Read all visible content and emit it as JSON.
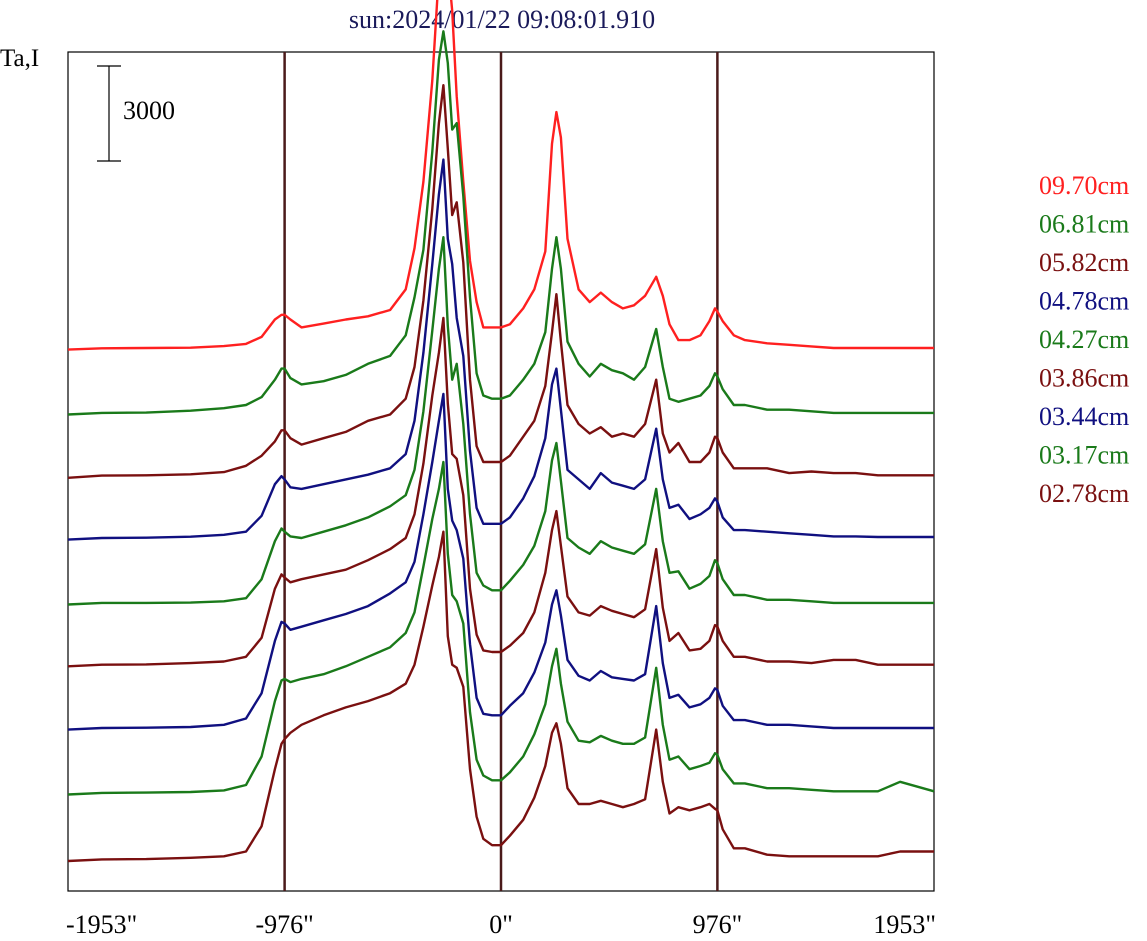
{
  "chart_data": {
    "type": "line",
    "title": "sun:2024/01/22 09:08:01.910",
    "ylabel": "Ta,I",
    "scale_bar_label": "3000",
    "scale_bar_value": 3000,
    "xlim": [
      -1953,
      1953
    ],
    "x_ticks": [
      {
        "value": -1953,
        "label": "-1953\""
      },
      {
        "value": -976,
        "label": "-976\""
      },
      {
        "value": 0,
        "label": "0\""
      },
      {
        "value": 976,
        "label": "976\""
      },
      {
        "value": 1953,
        "label": "1953\""
      }
    ],
    "vertical_lines": [
      -976,
      0,
      976
    ],
    "grid": false,
    "legend_position": "right",
    "x": [
      -1953,
      -1800,
      -1600,
      -1400,
      -1250,
      -1150,
      -1080,
      -1020,
      -990,
      -976,
      -950,
      -900,
      -800,
      -700,
      -600,
      -500,
      -430,
      -390,
      -350,
      -310,
      -280,
      -260,
      -240,
      -220,
      -200,
      -170,
      -140,
      -110,
      -80,
      -40,
      0,
      40,
      100,
      150,
      200,
      230,
      250,
      270,
      300,
      350,
      400,
      450,
      500,
      550,
      600,
      650,
      700,
      730,
      760,
      800,
      850,
      900,
      940,
      965,
      976,
      1000,
      1050,
      1100,
      1200,
      1300,
      1400,
      1500,
      1600,
      1700,
      1800,
      1953
    ],
    "series": [
      {
        "name": "09.70cm",
        "color": "#ff2020",
        "offset": 16150,
        "values": [
          0,
          40,
          50,
          60,
          110,
          180,
          400,
          950,
          1100,
          1100,
          950,
          700,
          820,
          950,
          1050,
          1250,
          1900,
          3200,
          5300,
          8500,
          11900,
          12800,
          12200,
          10700,
          8000,
          5300,
          2800,
          1500,
          700,
          700,
          700,
          800,
          1300,
          1900,
          3100,
          6500,
          7500,
          6700,
          3500,
          1900,
          1500,
          1800,
          1500,
          1300,
          1400,
          1700,
          2300,
          1700,
          800,
          300,
          300,
          450,
          900,
          1300,
          1200,
          900,
          450,
          300,
          200,
          150,
          100,
          50,
          50,
          50,
          50,
          50
        ]
      },
      {
        "name": "06.81cm",
        "color": "#1a7a1a",
        "offset": 14100,
        "values": [
          0,
          50,
          60,
          120,
          200,
          300,
          550,
          1100,
          1450,
          1450,
          1150,
          950,
          1050,
          1250,
          1600,
          1850,
          2500,
          3700,
          5200,
          8300,
          11200,
          12100,
          11100,
          9000,
          9200,
          6900,
          3700,
          1300,
          600,
          500,
          500,
          600,
          1100,
          1600,
          2600,
          4600,
          5600,
          4600,
          2300,
          1600,
          1200,
          1600,
          1400,
          1300,
          1100,
          1500,
          2700,
          1500,
          500,
          400,
          500,
          600,
          900,
          1300,
          1200,
          800,
          300,
          300,
          150,
          150,
          100,
          50,
          50,
          50,
          50,
          50
        ]
      },
      {
        "name": "05.82cm",
        "color": "#7a1010",
        "offset": 12100,
        "values": [
          0,
          70,
          80,
          110,
          180,
          380,
          700,
          1150,
          1500,
          1500,
          1250,
          1050,
          1250,
          1450,
          1800,
          2000,
          2500,
          3500,
          5600,
          8500,
          11200,
          12400,
          10400,
          8300,
          8700,
          6800,
          3100,
          1000,
          500,
          500,
          500,
          700,
          1300,
          1800,
          2900,
          4600,
          5800,
          4300,
          2300,
          1700,
          1400,
          1600,
          1300,
          1400,
          1300,
          1700,
          3100,
          1400,
          800,
          1100,
          500,
          500,
          800,
          1300,
          1250,
          800,
          300,
          300,
          300,
          150,
          200,
          150,
          150,
          80,
          80,
          80
        ]
      },
      {
        "name": "04.78cm",
        "color": "#101080",
        "offset": 10150,
        "values": [
          0,
          50,
          60,
          90,
          150,
          250,
          750,
          1750,
          2000,
          1900,
          1650,
          1600,
          1750,
          1900,
          2050,
          2250,
          2700,
          3750,
          5900,
          8700,
          10900,
          12000,
          9500,
          8700,
          7000,
          5800,
          2800,
          1000,
          500,
          500,
          500,
          700,
          1300,
          2000,
          3200,
          4900,
          5400,
          4100,
          2200,
          1900,
          1600,
          2100,
          1800,
          1700,
          1600,
          1900,
          3500,
          1900,
          1000,
          1100,
          650,
          800,
          1000,
          1300,
          1200,
          700,
          300,
          300,
          250,
          200,
          150,
          100,
          100,
          80,
          80,
          80
        ]
      },
      {
        "name": "04.27cm",
        "color": "#1a7a1a",
        "offset": 8100,
        "values": [
          0,
          50,
          50,
          60,
          100,
          200,
          800,
          2000,
          2400,
          2300,
          2150,
          2100,
          2300,
          2500,
          2750,
          3100,
          3450,
          4250,
          6100,
          8650,
          10600,
          11600,
          8800,
          7100,
          7600,
          5700,
          2850,
          1000,
          600,
          450,
          450,
          750,
          1250,
          1850,
          2950,
          4550,
          5100,
          3900,
          2100,
          1800,
          1600,
          2000,
          1800,
          1700,
          1600,
          1900,
          3650,
          2000,
          1000,
          1050,
          500,
          650,
          900,
          1400,
          1300,
          800,
          300,
          300,
          150,
          150,
          100,
          50,
          50,
          50,
          50,
          50
        ]
      },
      {
        "name": "03.86cm",
        "color": "#7a1010",
        "offset": 6150,
        "values": [
          0,
          50,
          60,
          100,
          150,
          300,
          900,
          2450,
          2900,
          2800,
          2650,
          2750,
          2900,
          3050,
          3350,
          3700,
          4050,
          4800,
          6400,
          8550,
          9900,
          11000,
          8300,
          6700,
          6550,
          5400,
          2450,
          1000,
          500,
          450,
          450,
          650,
          1050,
          1700,
          2950,
          4300,
          4900,
          3800,
          2200,
          1700,
          1600,
          1900,
          1750,
          1650,
          1550,
          1800,
          3700,
          1850,
          800,
          1050,
          500,
          550,
          800,
          1300,
          1250,
          800,
          300,
          300,
          150,
          150,
          100,
          200,
          200,
          50,
          50,
          50
        ]
      },
      {
        "name": "03.44cm",
        "color": "#101080",
        "offset": 4150,
        "values": [
          0,
          50,
          60,
          80,
          150,
          350,
          1150,
          2800,
          3400,
          3350,
          3150,
          3250,
          3450,
          3650,
          3900,
          4300,
          4650,
          5300,
          6800,
          8450,
          9750,
          10600,
          7600,
          6600,
          6300,
          5400,
          2700,
          1000,
          500,
          450,
          450,
          750,
          1150,
          1800,
          2750,
          3950,
          4400,
          3600,
          2200,
          1700,
          1550,
          1850,
          1650,
          1600,
          1550,
          1750,
          3900,
          2100,
          1000,
          1100,
          700,
          800,
          1000,
          1300,
          1250,
          750,
          300,
          300,
          150,
          150,
          100,
          50,
          50,
          50,
          50,
          50
        ]
      },
      {
        "name": "03.17cm",
        "color": "#1a7a1a",
        "offset": 2100,
        "values": [
          0,
          50,
          60,
          80,
          130,
          300,
          1200,
          2950,
          3600,
          3650,
          3550,
          3650,
          3800,
          4050,
          4350,
          4650,
          5100,
          5750,
          7200,
          8700,
          9650,
          10500,
          7600,
          6300,
          6100,
          5400,
          2600,
          1100,
          600,
          450,
          450,
          700,
          1200,
          1900,
          2850,
          4050,
          4600,
          3500,
          2300,
          1700,
          1650,
          1850,
          1700,
          1600,
          1600,
          1800,
          4000,
          2200,
          1100,
          1200,
          800,
          900,
          1000,
          1300,
          1250,
          800,
          350,
          350,
          200,
          200,
          150,
          100,
          100,
          100,
          400,
          100
        ]
      },
      {
        "name": "02.78cm",
        "color": "#7a1010",
        "offset": 0,
        "values": [
          0,
          50,
          60,
          100,
          150,
          300,
          1100,
          2900,
          3700,
          3850,
          4050,
          4300,
          4600,
          4850,
          5050,
          5300,
          5600,
          6200,
          7400,
          8700,
          9600,
          10400,
          7100,
          6200,
          6100,
          5500,
          2900,
          1400,
          700,
          500,
          500,
          800,
          1300,
          2000,
          3000,
          4050,
          4350,
          3700,
          2300,
          1800,
          1800,
          1900,
          1800,
          1700,
          1800,
          1950,
          4150,
          2500,
          1500,
          1700,
          1600,
          1700,
          1800,
          1650,
          1600,
          1000,
          400,
          400,
          200,
          150,
          150,
          150,
          150,
          150,
          300,
          300
        ]
      }
    ]
  }
}
